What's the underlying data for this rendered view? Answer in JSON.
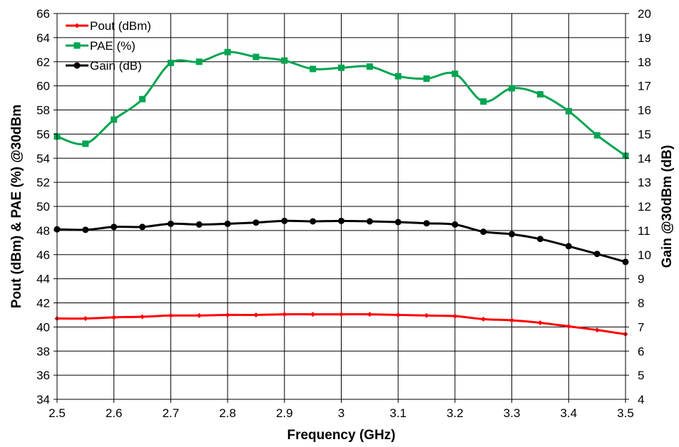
{
  "chart_data": {
    "type": "line",
    "xlabel": "Frequency (GHz)",
    "ylabel_left": "Pout (dBm) & PAE (%)  @30dBm",
    "ylabel_right": "Gain @30dBm (dB)",
    "xlim": [
      2.5,
      3.5
    ],
    "ylim_left": [
      34,
      66
    ],
    "ylim_right": [
      4,
      20
    ],
    "x_ticks": [
      "2.5",
      "2.6",
      "2.7",
      "2.8",
      "2.9",
      "3",
      "3.1",
      "3.2",
      "3.3",
      "3.4",
      "3.5"
    ],
    "y_left_ticks": [
      "34",
      "36",
      "38",
      "40",
      "42",
      "44",
      "46",
      "48",
      "50",
      "52",
      "54",
      "56",
      "58",
      "60",
      "62",
      "64",
      "66"
    ],
    "y_right_ticks": [
      "4",
      "5",
      "6",
      "7",
      "8",
      "9",
      "10",
      "11",
      "12",
      "13",
      "14",
      "15",
      "16",
      "17",
      "18",
      "19",
      "20"
    ],
    "grid": true,
    "legend_position": "top-left",
    "x": [
      2.5,
      2.55,
      2.6,
      2.65,
      2.7,
      2.75,
      2.8,
      2.85,
      2.9,
      2.95,
      3.0,
      3.05,
      3.1,
      3.15,
      3.2,
      3.25,
      3.3,
      3.35,
      3.4,
      3.45,
      3.5
    ],
    "series": [
      {
        "name": "Pout (dBm)",
        "axis": "left",
        "color": "#ff0000",
        "marker": "diamond",
        "values": [
          40.7,
          40.7,
          40.8,
          40.85,
          40.95,
          40.95,
          41.0,
          41.0,
          41.05,
          41.05,
          41.05,
          41.05,
          41.0,
          40.95,
          40.9,
          40.65,
          40.55,
          40.35,
          40.05,
          39.75,
          39.4
        ]
      },
      {
        "name": "PAE (%)",
        "axis": "left",
        "color": "#00a550",
        "marker": "square",
        "values": [
          55.8,
          55.2,
          57.2,
          58.9,
          61.9,
          62.0,
          62.8,
          62.4,
          62.1,
          61.4,
          61.5,
          61.6,
          60.8,
          60.6,
          61.0,
          58.7,
          59.8,
          59.3,
          57.9,
          55.9,
          54.2
        ]
      },
      {
        "name": "Gain (dB)",
        "axis": "right",
        "color": "#000000",
        "marker": "circle",
        "values": [
          11.05,
          11.03,
          11.15,
          11.15,
          11.28,
          11.25,
          11.28,
          11.33,
          11.4,
          11.38,
          11.4,
          11.38,
          11.35,
          11.3,
          11.25,
          10.95,
          10.85,
          10.65,
          10.35,
          10.03,
          9.7
        ]
      }
    ]
  }
}
